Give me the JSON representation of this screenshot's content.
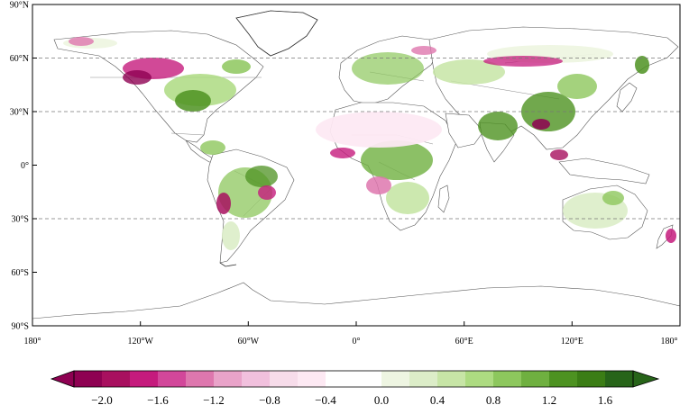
{
  "map": {
    "x_ticks": [
      "180°",
      "120°W",
      "60°W",
      "0°",
      "60°E",
      "120°E",
      "180°"
    ],
    "y_ticks": [
      "90°N",
      "60°N",
      "30°N",
      "0°",
      "30°S",
      "60°S",
      "90°S"
    ],
    "dashed_latitudes": [
      "60°N",
      "30°N",
      "30°S"
    ]
  },
  "colorbar": {
    "ticks": [
      "−2.0",
      "−1.6",
      "−1.2",
      "−0.8",
      "−0.4",
      "0.0",
      "0.4",
      "0.8",
      "1.2",
      "1.6"
    ],
    "colors": [
      "#8e0152",
      "#a8105f",
      "#c51b7d",
      "#d2479a",
      "#de77ae",
      "#e9a3c9",
      "#f1c0dd",
      "#f7dcea",
      "#fde9f3",
      "#ffffff",
      "#ffffff",
      "#eef5e2",
      "#dcedc8",
      "#c7e5a6",
      "#addb81",
      "#8dc75d",
      "#6fb040",
      "#4d9221",
      "#3b7d15",
      "#276419"
    ],
    "arrow_left_color": "#8e0152",
    "arrow_right_color": "#276419"
  }
}
